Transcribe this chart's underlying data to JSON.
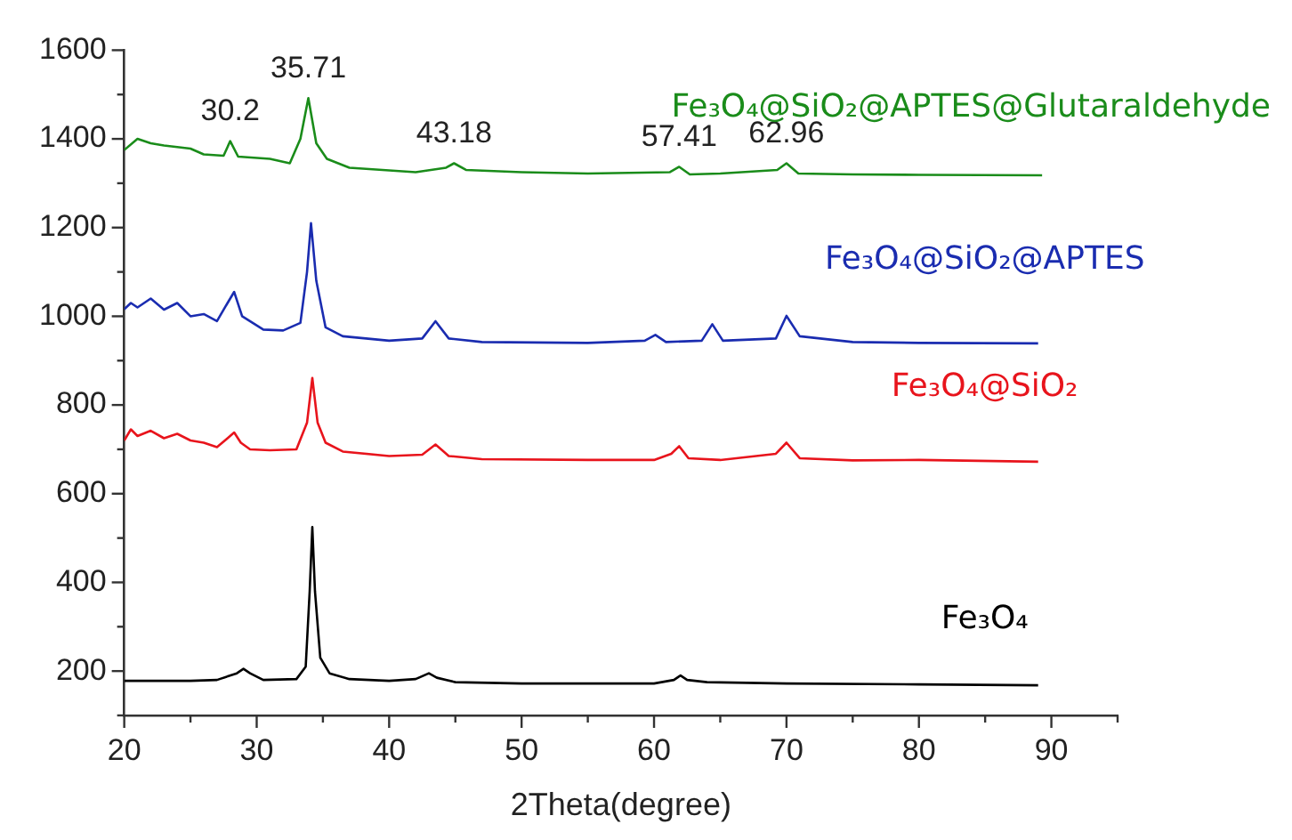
{
  "chart_data": {
    "type": "line",
    "xlabel": "2Theta(degree)",
    "xlim": [
      20,
      95
    ],
    "xticks": [
      20,
      30,
      40,
      50,
      60,
      70,
      80,
      90
    ],
    "ylim": [
      100,
      1600
    ],
    "yticks": [
      200,
      400,
      600,
      800,
      1000,
      1200,
      1400,
      1600
    ],
    "grid": false,
    "legend": false,
    "marker": "none",
    "line_style": "solid",
    "annotations": [
      {
        "text": "30.2",
        "x": 28,
        "y": 1395
      },
      {
        "text": "35.71",
        "x": 33.9,
        "y": 1492
      },
      {
        "text": "43.18",
        "x": 44.9,
        "y": 1345
      },
      {
        "text": "57.41",
        "x": 61.9,
        "y": 1337
      },
      {
        "text": "62.96",
        "x": 70,
        "y": 1345
      }
    ],
    "series": [
      {
        "name": "Fe₃O₄",
        "color": "#000000",
        "x": [
          20,
          25,
          27,
          28.5,
          29,
          29.5,
          30.5,
          33,
          33.7,
          34,
          34.2,
          34.4,
          34.8,
          35.5,
          37,
          40,
          42,
          43,
          43.6,
          45,
          50,
          55,
          60,
          61.5,
          62,
          62.5,
          64,
          70,
          80,
          89
        ],
        "values": [
          178,
          178,
          180,
          195,
          205,
          195,
          180,
          182,
          210,
          380,
          525,
          380,
          230,
          195,
          182,
          178,
          182,
          195,
          185,
          175,
          172,
          172,
          172,
          180,
          190,
          180,
          175,
          172,
          170,
          168
        ]
      },
      {
        "name": "Fe₃O₄@SiO₂",
        "color": "#e8141c",
        "x": [
          20,
          20.5,
          21,
          22,
          23,
          24,
          25,
          26,
          27,
          27.8,
          28.3,
          28.8,
          29.5,
          31,
          33,
          33.8,
          34.2,
          34.6,
          35.2,
          36.5,
          40,
          42.5,
          43.5,
          44.5,
          47,
          55,
          60,
          61.3,
          61.9,
          62.6,
          65,
          69.2,
          70,
          71,
          75,
          80,
          89
        ],
        "values": [
          720,
          745,
          730,
          742,
          725,
          735,
          720,
          715,
          705,
          725,
          738,
          715,
          700,
          698,
          700,
          760,
          861,
          760,
          715,
          695,
          685,
          688,
          711,
          685,
          678,
          676,
          676,
          690,
          707,
          680,
          676,
          690,
          715,
          680,
          675,
          676,
          672
        ]
      },
      {
        "name": "Fe₃O₄@SiO₂@APTES",
        "color": "#1a2cb0",
        "x": [
          20,
          20.5,
          21,
          22,
          23,
          24,
          25,
          26,
          27,
          27.8,
          28.3,
          28.9,
          30.5,
          32,
          33.3,
          33.8,
          34.1,
          34.5,
          35.2,
          36.5,
          40,
          42.5,
          43.5,
          44.5,
          47,
          55,
          59.3,
          60.1,
          60.9,
          63.6,
          64.4,
          65.2,
          69.2,
          70,
          71,
          75,
          80,
          89
        ],
        "values": [
          1016,
          1030,
          1020,
          1040,
          1015,
          1030,
          1000,
          1005,
          989,
          1030,
          1055,
          1000,
          970,
          968,
          985,
          1100,
          1210,
          1080,
          975,
          955,
          945,
          950,
          989,
          950,
          942,
          940,
          945,
          958,
          942,
          945,
          982,
          945,
          950,
          1001,
          955,
          942,
          940,
          939
        ]
      },
      {
        "name": "Fe₃O₄@SiO₂@APTES@Glutaraldehyde",
        "color": "#1a8c1a",
        "x": [
          20,
          21,
          22,
          23,
          25,
          26,
          27.5,
          28,
          28.6,
          31,
          32.5,
          33.3,
          33.9,
          34.5,
          35.3,
          37,
          42,
          44.3,
          44.9,
          45.8,
          50,
          55,
          61.2,
          61.9,
          62.7,
          65,
          69.3,
          70,
          70.9,
          75,
          80,
          89.3
        ],
        "values": [
          1375,
          1400,
          1390,
          1385,
          1378,
          1365,
          1362,
          1395,
          1360,
          1355,
          1345,
          1400,
          1492,
          1390,
          1355,
          1335,
          1325,
          1335,
          1345,
          1330,
          1325,
          1322,
          1325,
          1337,
          1320,
          1322,
          1330,
          1345,
          1322,
          1320,
          1319,
          1318
        ]
      }
    ]
  }
}
